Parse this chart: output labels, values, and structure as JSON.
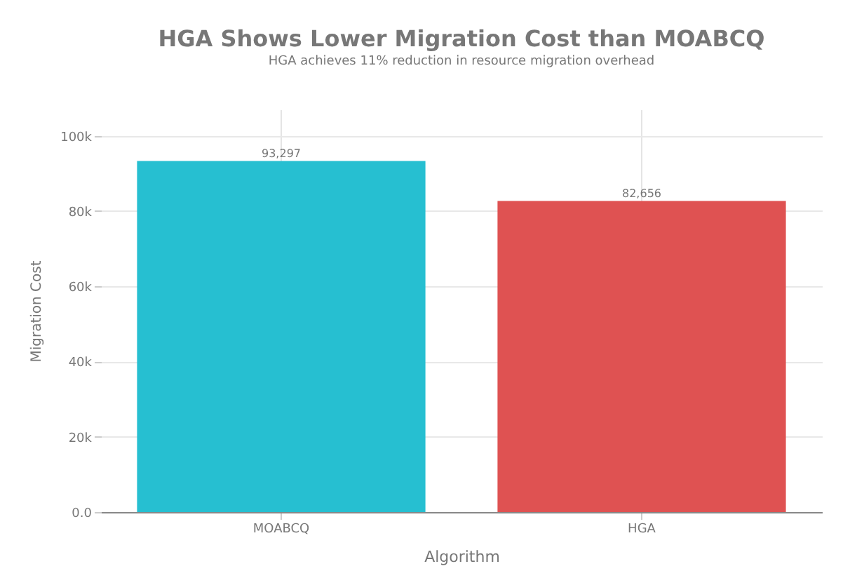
{
  "chart_data": {
    "type": "bar",
    "title": "HGA Shows Lower Migration Cost than MOABCQ",
    "subtitle": "HGA achieves 11% reduction in resource migration overhead",
    "xlabel": "Algorithm",
    "ylabel": "Migration Cost",
    "categories": [
      "MOABCQ",
      "HGA"
    ],
    "values": [
      93297,
      82656
    ],
    "colors": [
      "#26bfd1",
      "#df5252"
    ],
    "value_labels": [
      "93,297",
      "82,656"
    ],
    "ylim": [
      0,
      107000
    ],
    "yticks": [
      {
        "value": 0,
        "label": "0.0"
      },
      {
        "value": 20000,
        "label": "20k"
      },
      {
        "value": 40000,
        "label": "40k"
      },
      {
        "value": 60000,
        "label": "60k"
      },
      {
        "value": 80000,
        "label": "80k"
      },
      {
        "value": 100000,
        "label": "100k"
      }
    ],
    "grid": true
  }
}
